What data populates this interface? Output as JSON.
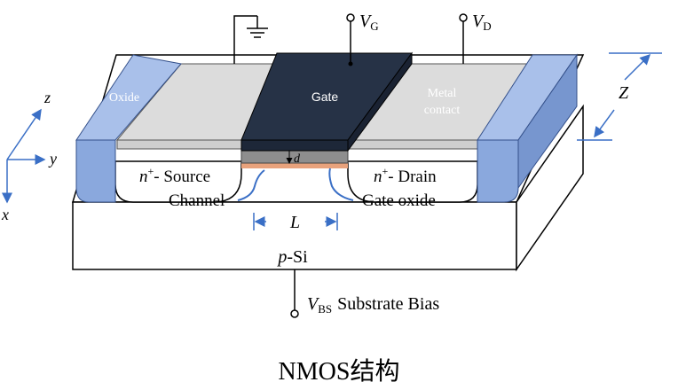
{
  "diagram": {
    "caption": "NMOS结构",
    "layers": {
      "oxide": "Oxide",
      "gate": "Gate",
      "metal_contact_line1": "Metal",
      "metal_contact_line2": "contact",
      "substrate": "p-Si",
      "source": "n+- Source",
      "drain": "n+- Drain",
      "channel": "Channel",
      "gate_oxide": "Gate oxide"
    },
    "terminals": {
      "gate": "V",
      "gate_sub": "G",
      "drain": "V",
      "drain_sub": "D",
      "substrate": "V",
      "substrate_sub": "BS",
      "substrate_text": "Substrate Bias"
    },
    "dimensions": {
      "length": "L",
      "width": "Z",
      "oxide_thickness": "d"
    },
    "axes": {
      "x": "x",
      "y": "y",
      "z": "z"
    },
    "colors": {
      "gate": "#263246",
      "metal": "#dcdcdc",
      "oxide": "#8aa8dd",
      "channel": "#e8a27c",
      "axis": "#3a6fc6"
    }
  }
}
